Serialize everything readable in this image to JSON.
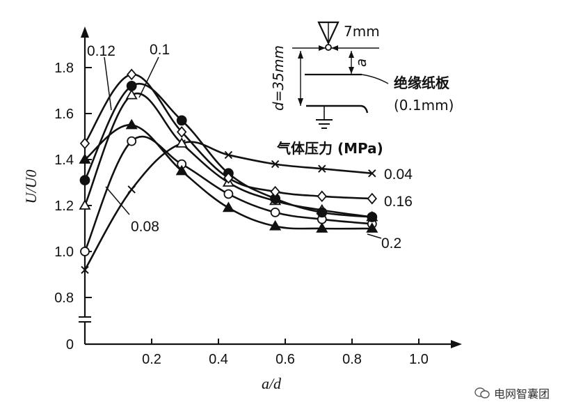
{
  "chart_data": {
    "type": "line",
    "xlabel": "a/d",
    "ylabel": "U/U0",
    "xlim": [
      0,
      1.1
    ],
    "ylim": [
      0,
      1.95
    ],
    "axis_break": true,
    "x_ticks": [
      "0.2",
      "0.4",
      "0.6",
      "0.8",
      "1.0"
    ],
    "y_ticks": [
      "0",
      "0.8",
      "1.0",
      "1.2",
      "1.4",
      "1.6",
      "1.8"
    ],
    "series": [
      {
        "name": "0.04",
        "marker": "x",
        "x": [
          0,
          0.14,
          0.29,
          0.43,
          0.57,
          0.71,
          0.86
        ],
        "y": [
          0.92,
          1.27,
          1.47,
          1.42,
          1.38,
          1.36,
          1.34
        ]
      },
      {
        "name": "0.08",
        "marker": "open-circle",
        "x": [
          0,
          0.14,
          0.29,
          0.43,
          0.57,
          0.71,
          0.86
        ],
        "y": [
          1.0,
          1.48,
          1.38,
          1.25,
          1.17,
          1.14,
          1.12
        ]
      },
      {
        "name": "0.1",
        "marker": "open-triangle",
        "x": [
          0,
          0.14,
          0.29,
          0.43,
          0.57,
          0.71,
          0.86
        ],
        "y": [
          1.2,
          1.68,
          1.47,
          1.3,
          1.22,
          1.18,
          1.15
        ]
      },
      {
        "name": "0.12",
        "marker": "filled-circle",
        "x": [
          0,
          0.14,
          0.29,
          0.43,
          0.57,
          0.71,
          0.86
        ],
        "y": [
          1.31,
          1.72,
          1.57,
          1.34,
          1.23,
          1.17,
          1.15
        ]
      },
      {
        "name": "0.16",
        "marker": "open-diamond",
        "x": [
          0,
          0.14,
          0.29,
          0.43,
          0.57,
          0.71,
          0.86
        ],
        "y": [
          1.47,
          1.77,
          1.52,
          1.32,
          1.26,
          1.24,
          1.23
        ]
      },
      {
        "name": "0.2",
        "marker": "filled-triangle",
        "x": [
          0,
          0.14,
          0.29,
          0.43,
          0.57,
          0.71,
          0.86
        ],
        "y": [
          1.4,
          1.55,
          1.35,
          1.19,
          1.11,
          1.1,
          1.1
        ]
      }
    ]
  },
  "inset": {
    "gap_label": "7mm",
    "a_label": "a",
    "d_label": "d=35mm",
    "board_label": "绝缘纸板",
    "board_thickness": "(0.1mm)",
    "pressure_title": "气体压力 (MPa)"
  },
  "watermark": "电网智囊团"
}
